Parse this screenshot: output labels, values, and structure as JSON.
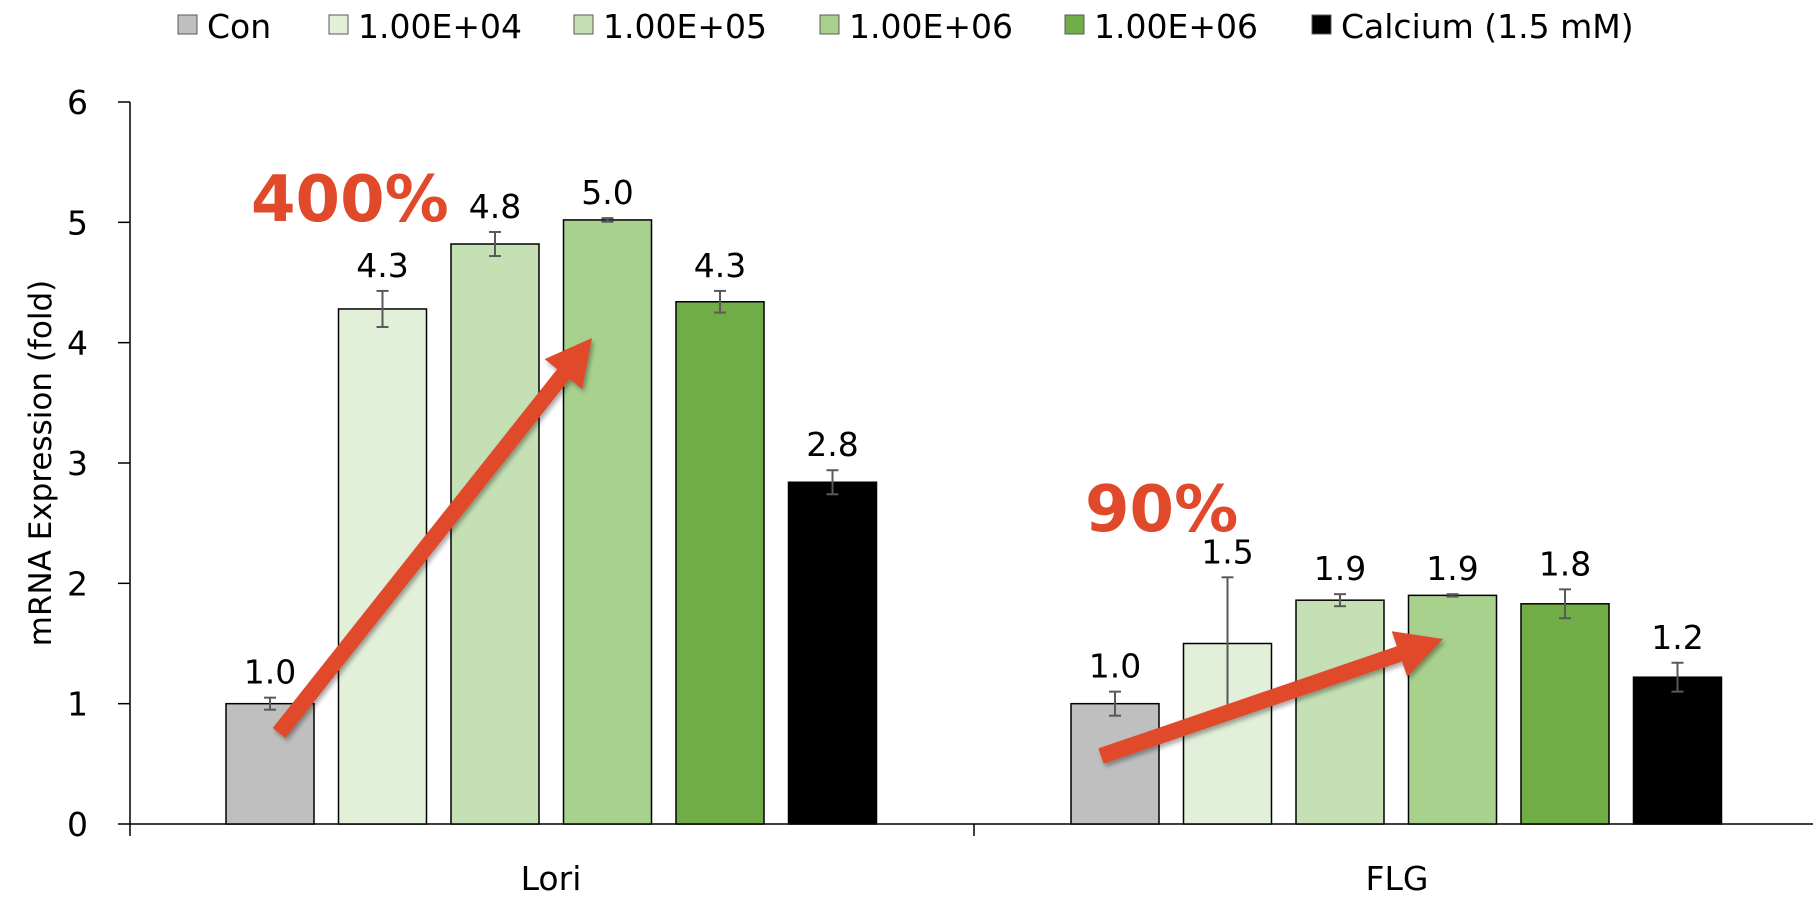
{
  "chart_data": {
    "type": "bar",
    "title": "",
    "xlabel": "",
    "ylabel": "mRNA Expression (fold)",
    "ylabel_right": "mRNA Expression (fold)",
    "ylim": [
      0,
      6
    ],
    "yticks": [
      "0",
      "1",
      "2",
      "3",
      "4",
      "5",
      "6"
    ],
    "grid": false,
    "legend_position": "top",
    "categories": [
      "Lori",
      "FLG"
    ],
    "series": [
      {
        "name": "Con",
        "color": "#bfbfbf",
        "values": [
          1.0,
          1.0
        ],
        "errors": [
          0.05,
          0.1
        ],
        "labels": [
          "1.0",
          "1.0"
        ]
      },
      {
        "name": "1.00E+04",
        "color": "#e2efd9",
        "values": [
          4.28,
          1.5
        ],
        "errors": [
          0.15,
          0.55
        ],
        "labels": [
          "4.3",
          "1.5"
        ]
      },
      {
        "name": "1.00E+05",
        "color": "#c5e0b4",
        "values": [
          4.82,
          1.86
        ],
        "errors": [
          0.1,
          0.05
        ],
        "labels": [
          "4.8",
          "1.9"
        ]
      },
      {
        "name": "1.00E+06",
        "color": "#a9d18e",
        "values": [
          5.02,
          1.9
        ],
        "errors": [
          0.015,
          0.01
        ],
        "labels": [
          "5.0",
          "1.9"
        ]
      },
      {
        "name": "1.00E+06",
        "color": "#70ad47",
        "values": [
          4.34,
          1.83
        ],
        "errors": [
          0.09,
          0.12
        ],
        "labels": [
          "4.3",
          "1.8"
        ]
      },
      {
        "name": "Calcium (1.5 mM)",
        "color": "#000000",
        "values": [
          2.84,
          1.22
        ],
        "errors": [
          0.1,
          0.12
        ],
        "labels": [
          "2.8",
          "1.2"
        ]
      }
    ],
    "annotations": [
      {
        "text": "400%",
        "color": "#e04a2a"
      },
      {
        "text": "90%",
        "color": "#e04a2a"
      }
    ]
  }
}
